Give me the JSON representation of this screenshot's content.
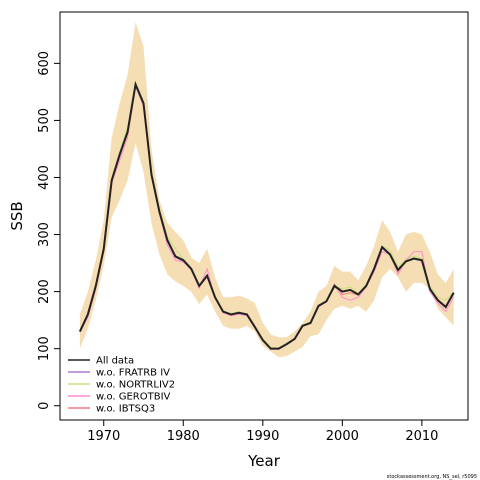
{
  "chart_data": {
    "type": "line",
    "xlabel": "Year",
    "ylabel": "SSB",
    "xlim": [
      1964.5,
      2015.8
    ],
    "ylim": [
      -25,
      690
    ],
    "x_ticks": [
      1970,
      1980,
      1990,
      2000,
      2010
    ],
    "y_ticks": [
      0,
      100,
      200,
      300,
      400,
      500,
      600
    ],
    "grid": false,
    "legend_position": "bottom-left",
    "footer": "stockassessment.org, NS_sel, r5095",
    "band_color": "#f5deb3",
    "x": [
      1967,
      1968,
      1969,
      1970,
      1971,
      1972,
      1973,
      1974,
      1975,
      1976,
      1977,
      1978,
      1979,
      1980,
      1981,
      1982,
      1983,
      1984,
      1985,
      1986,
      1987,
      1988,
      1989,
      1990,
      1991,
      1992,
      1993,
      1994,
      1995,
      1996,
      1997,
      1998,
      1999,
      2000,
      2001,
      2002,
      2003,
      2004,
      2005,
      2006,
      2007,
      2008,
      2009,
      2010,
      2011,
      2012,
      2013,
      2014
    ],
    "band_lower": [
      100,
      135,
      185,
      245,
      330,
      360,
      395,
      460,
      410,
      320,
      265,
      230,
      218,
      210,
      200,
      178,
      195,
      165,
      140,
      135,
      135,
      140,
      130,
      105,
      95,
      85,
      87,
      95,
      103,
      122,
      125,
      150,
      170,
      175,
      170,
      175,
      165,
      185,
      225,
      240,
      225,
      200,
      215,
      215,
      205,
      170,
      155,
      140
    ],
    "band_upper": [
      160,
      200,
      255,
      325,
      470,
      530,
      580,
      672,
      630,
      450,
      360,
      320,
      305,
      290,
      260,
      250,
      275,
      225,
      190,
      190,
      193,
      188,
      180,
      145,
      125,
      120,
      120,
      130,
      145,
      165,
      200,
      210,
      245,
      235,
      235,
      220,
      245,
      280,
      325,
      305,
      270,
      300,
      305,
      300,
      270,
      230,
      215,
      240
    ],
    "series": [
      {
        "name": "All data",
        "color": "#222222",
        "values": [
          130,
          160,
          210,
          275,
          395,
          440,
          480,
          563,
          530,
          405,
          340,
          290,
          262,
          255,
          240,
          210,
          228,
          190,
          165,
          160,
          163,
          160,
          138,
          115,
          100,
          100,
          108,
          117,
          140,
          145,
          175,
          183,
          210,
          200,
          203,
          195,
          210,
          240,
          278,
          265,
          238,
          253,
          258,
          255,
          205,
          185,
          173,
          198
        ]
      },
      {
        "name": "w.o. FRATRB IV",
        "color": "#b07cd0",
        "values": [
          130,
          158,
          208,
          272,
          392,
          437,
          477,
          560,
          528,
          403,
          338,
          288,
          260,
          253,
          240,
          208,
          226,
          190,
          164,
          160,
          162,
          160,
          138,
          115,
          100,
          100,
          108,
          117,
          140,
          145,
          175,
          182,
          208,
          200,
          202,
          195,
          210,
          238,
          276,
          264,
          237,
          252,
          257,
          254,
          205,
          185,
          172,
          197
        ]
      },
      {
        "name": "w.o. NORTRLIV2",
        "color": "#c8e07a",
        "values": [
          131,
          162,
          212,
          278,
          398,
          445,
          488,
          566,
          533,
          408,
          345,
          297,
          275,
          258,
          242,
          210,
          228,
          192,
          166,
          161,
          165,
          160,
          140,
          117,
          101,
          101,
          109,
          118,
          141,
          147,
          176,
          185,
          210,
          205,
          208,
          197,
          213,
          243,
          280,
          272,
          243,
          257,
          262,
          258,
          210,
          190,
          185,
          200
        ]
      },
      {
        "name": "w.o. GEROTBIV",
        "color": "#ff8ccf",
        "values": [
          129,
          155,
          205,
          270,
          390,
          430,
          470,
          560,
          525,
          402,
          336,
          282,
          255,
          252,
          238,
          206,
          240,
          188,
          163,
          158,
          160,
          158,
          136,
          114,
          99,
          99,
          107,
          116,
          139,
          144,
          173,
          182,
          212,
          190,
          185,
          190,
          208,
          235,
          270,
          265,
          230,
          255,
          270,
          270,
          200,
          180,
          165,
          190
        ]
      },
      {
        "name": "w.o. IBTSQ3",
        "color": "#ee7a82",
        "values": [
          130,
          159,
          209,
          274,
          394,
          438,
          478,
          562,
          529,
          404,
          339,
          289,
          261,
          254,
          240,
          209,
          227,
          190,
          165,
          160,
          163,
          160,
          138,
          115,
          100,
          100,
          108,
          117,
          140,
          145,
          175,
          183,
          213,
          195,
          198,
          194,
          210,
          239,
          277,
          265,
          235,
          254,
          258,
          255,
          205,
          186,
          175,
          195
        ]
      }
    ]
  }
}
